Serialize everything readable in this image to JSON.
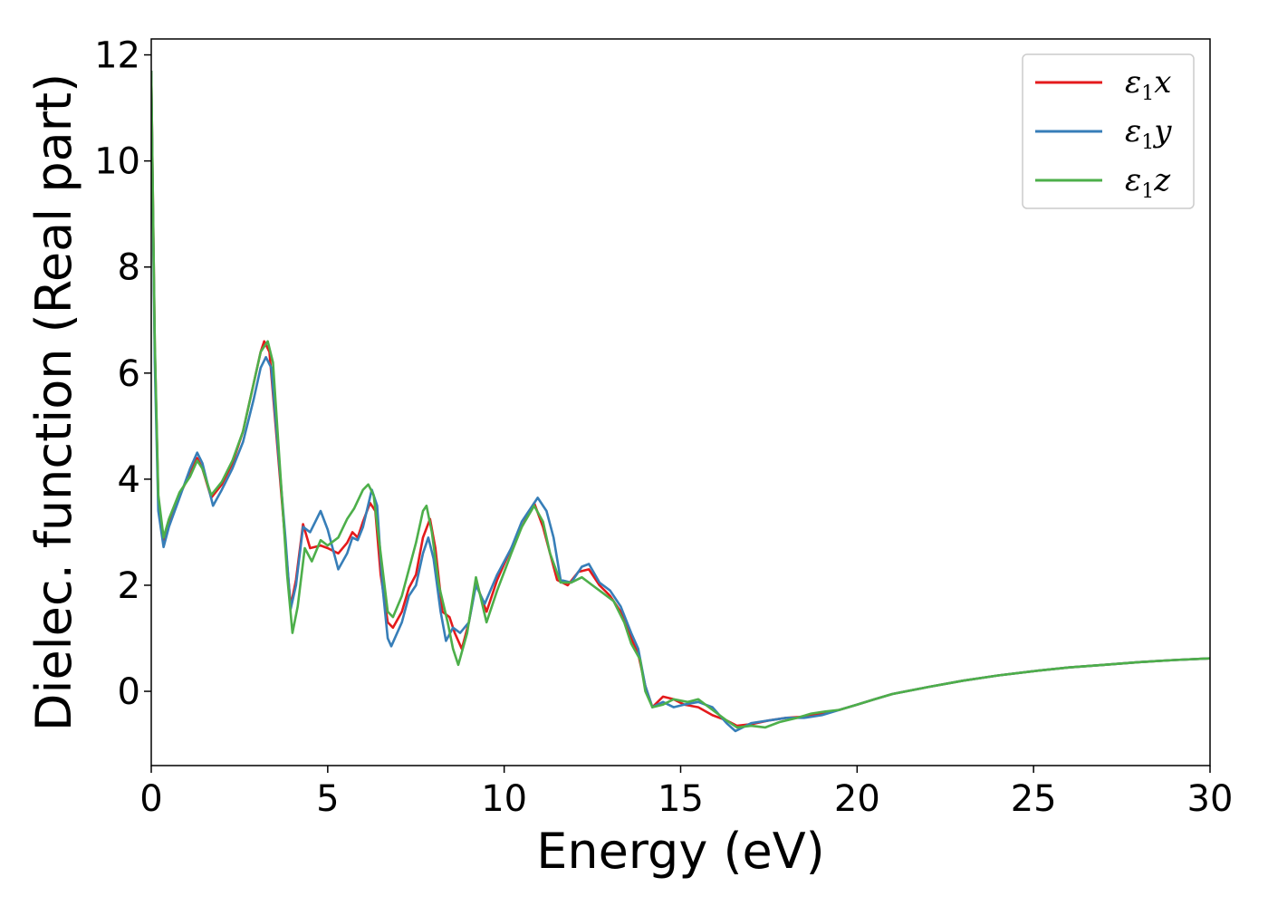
{
  "chart_data": {
    "type": "line",
    "title": "",
    "xlabel": "Energy (eV)",
    "ylabel": "Dielec. function (Real part)",
    "xlim": [
      0,
      30
    ],
    "ylim": [
      -1.4,
      12.3
    ],
    "xticks": [
      0,
      5,
      10,
      15,
      20,
      25,
      30
    ],
    "yticks": [
      0,
      2,
      4,
      6,
      8,
      10,
      12
    ],
    "grid": false,
    "legend": "top-right",
    "series": [
      {
        "name": "ε1x",
        "label_main": "ε",
        "label_sub": "1",
        "label_tail": "x",
        "color": "#e41a1c",
        "points": [
          [
            0,
            11.7
          ],
          [
            0.1,
            6.5
          ],
          [
            0.2,
            3.6
          ],
          [
            0.35,
            2.85
          ],
          [
            0.5,
            3.2
          ],
          [
            0.8,
            3.7
          ],
          [
            1.1,
            4.1
          ],
          [
            1.3,
            4.4
          ],
          [
            1.45,
            4.2
          ],
          [
            1.7,
            3.65
          ],
          [
            2.0,
            3.9
          ],
          [
            2.3,
            4.3
          ],
          [
            2.6,
            4.9
          ],
          [
            2.9,
            5.8
          ],
          [
            3.1,
            6.4
          ],
          [
            3.2,
            6.6
          ],
          [
            3.35,
            6.4
          ],
          [
            3.6,
            4.4
          ],
          [
            3.8,
            2.8
          ],
          [
            3.95,
            1.6
          ],
          [
            4.1,
            2.1
          ],
          [
            4.3,
            3.15
          ],
          [
            4.5,
            2.7
          ],
          [
            4.8,
            2.75
          ],
          [
            5.0,
            2.7
          ],
          [
            5.3,
            2.6
          ],
          [
            5.55,
            2.8
          ],
          [
            5.7,
            3.0
          ],
          [
            5.85,
            2.9
          ],
          [
            6.0,
            3.2
          ],
          [
            6.2,
            3.55
          ],
          [
            6.35,
            3.4
          ],
          [
            6.5,
            2.2
          ],
          [
            6.7,
            1.3
          ],
          [
            6.85,
            1.2
          ],
          [
            7.1,
            1.5
          ],
          [
            7.3,
            1.95
          ],
          [
            7.5,
            2.2
          ],
          [
            7.7,
            2.9
          ],
          [
            7.9,
            3.25
          ],
          [
            8.05,
            2.7
          ],
          [
            8.25,
            1.5
          ],
          [
            8.45,
            1.4
          ],
          [
            8.6,
            1.1
          ],
          [
            8.8,
            0.8
          ],
          [
            9.0,
            1.3
          ],
          [
            9.2,
            2.05
          ],
          [
            9.5,
            1.5
          ],
          [
            9.8,
            2.1
          ],
          [
            10.2,
            2.7
          ],
          [
            10.5,
            3.1
          ],
          [
            10.85,
            3.55
          ],
          [
            11.1,
            3.1
          ],
          [
            11.3,
            2.6
          ],
          [
            11.5,
            2.1
          ],
          [
            11.8,
            2.0
          ],
          [
            12.1,
            2.25
          ],
          [
            12.4,
            2.3
          ],
          [
            12.7,
            2.0
          ],
          [
            13.0,
            1.8
          ],
          [
            13.3,
            1.5
          ],
          [
            13.6,
            1.0
          ],
          [
            13.8,
            0.7
          ],
          [
            14.0,
            0.1
          ],
          [
            14.2,
            -0.3
          ],
          [
            14.5,
            -0.1
          ],
          [
            14.8,
            -0.15
          ],
          [
            15.1,
            -0.25
          ],
          [
            15.5,
            -0.3
          ],
          [
            15.9,
            -0.45
          ],
          [
            16.3,
            -0.55
          ],
          [
            16.6,
            -0.65
          ],
          [
            17.0,
            -0.62
          ],
          [
            17.5,
            -0.55
          ],
          [
            18.0,
            -0.5
          ],
          [
            18.5,
            -0.48
          ],
          [
            19.0,
            -0.42
          ],
          [
            19.5,
            -0.35
          ],
          [
            20.0,
            -0.25
          ],
          [
            20.5,
            -0.15
          ],
          [
            21.0,
            -0.05
          ],
          [
            22.0,
            0.08
          ],
          [
            23.0,
            0.2
          ],
          [
            24.0,
            0.3
          ],
          [
            25.0,
            0.38
          ],
          [
            26.0,
            0.45
          ],
          [
            27.0,
            0.5
          ],
          [
            28.0,
            0.55
          ],
          [
            29.0,
            0.59
          ],
          [
            30.0,
            0.62
          ]
        ]
      },
      {
        "name": "ε1y",
        "label_main": "ε",
        "label_sub": "1",
        "label_tail": "y",
        "color": "#377eb8",
        "points": [
          [
            0,
            11.7
          ],
          [
            0.1,
            6.2
          ],
          [
            0.2,
            3.4
          ],
          [
            0.35,
            2.72
          ],
          [
            0.5,
            3.1
          ],
          [
            0.8,
            3.65
          ],
          [
            1.1,
            4.2
          ],
          [
            1.3,
            4.5
          ],
          [
            1.45,
            4.3
          ],
          [
            1.75,
            3.5
          ],
          [
            2.0,
            3.8
          ],
          [
            2.3,
            4.2
          ],
          [
            2.6,
            4.7
          ],
          [
            2.9,
            5.5
          ],
          [
            3.1,
            6.1
          ],
          [
            3.25,
            6.3
          ],
          [
            3.4,
            6.1
          ],
          [
            3.6,
            4.5
          ],
          [
            3.8,
            2.9
          ],
          [
            3.95,
            1.55
          ],
          [
            4.1,
            2.0
          ],
          [
            4.3,
            3.1
          ],
          [
            4.5,
            3.0
          ],
          [
            4.8,
            3.4
          ],
          [
            5.0,
            3.05
          ],
          [
            5.3,
            2.3
          ],
          [
            5.55,
            2.6
          ],
          [
            5.7,
            2.9
          ],
          [
            5.85,
            2.85
          ],
          [
            6.0,
            3.1
          ],
          [
            6.25,
            3.8
          ],
          [
            6.4,
            3.5
          ],
          [
            6.55,
            2.0
          ],
          [
            6.7,
            1.0
          ],
          [
            6.8,
            0.85
          ],
          [
            7.1,
            1.3
          ],
          [
            7.3,
            1.8
          ],
          [
            7.5,
            2.0
          ],
          [
            7.7,
            2.6
          ],
          [
            7.85,
            2.9
          ],
          [
            8.0,
            2.5
          ],
          [
            8.2,
            1.5
          ],
          [
            8.35,
            0.95
          ],
          [
            8.55,
            1.2
          ],
          [
            8.75,
            1.1
          ],
          [
            9.0,
            1.3
          ],
          [
            9.2,
            2.0
          ],
          [
            9.45,
            1.65
          ],
          [
            9.8,
            2.2
          ],
          [
            10.2,
            2.7
          ],
          [
            10.5,
            3.2
          ],
          [
            10.95,
            3.65
          ],
          [
            11.2,
            3.4
          ],
          [
            11.4,
            2.9
          ],
          [
            11.6,
            2.1
          ],
          [
            11.9,
            2.05
          ],
          [
            12.2,
            2.35
          ],
          [
            12.4,
            2.4
          ],
          [
            12.7,
            2.05
          ],
          [
            13.0,
            1.9
          ],
          [
            13.3,
            1.6
          ],
          [
            13.6,
            1.1
          ],
          [
            13.8,
            0.8
          ],
          [
            14.0,
            0.1
          ],
          [
            14.2,
            -0.3
          ],
          [
            14.5,
            -0.2
          ],
          [
            14.8,
            -0.3
          ],
          [
            15.1,
            -0.25
          ],
          [
            15.5,
            -0.2
          ],
          [
            15.9,
            -0.3
          ],
          [
            16.3,
            -0.6
          ],
          [
            16.55,
            -0.75
          ],
          [
            17.0,
            -0.6
          ],
          [
            17.5,
            -0.55
          ],
          [
            18.0,
            -0.5
          ],
          [
            18.5,
            -0.5
          ],
          [
            19.0,
            -0.45
          ],
          [
            19.5,
            -0.35
          ],
          [
            20.0,
            -0.25
          ],
          [
            20.5,
            -0.15
          ],
          [
            21.0,
            -0.05
          ],
          [
            22.0,
            0.08
          ],
          [
            23.0,
            0.2
          ],
          [
            24.0,
            0.3
          ],
          [
            25.0,
            0.38
          ],
          [
            26.0,
            0.45
          ],
          [
            27.0,
            0.5
          ],
          [
            28.0,
            0.55
          ],
          [
            29.0,
            0.59
          ],
          [
            30.0,
            0.62
          ]
        ]
      },
      {
        "name": "ε1z",
        "label_main": "ε",
        "label_sub": "1",
        "label_tail": "z",
        "color": "#4daf4a",
        "points": [
          [
            0,
            11.7
          ],
          [
            0.1,
            6.6
          ],
          [
            0.2,
            3.7
          ],
          [
            0.35,
            2.9
          ],
          [
            0.5,
            3.25
          ],
          [
            0.8,
            3.75
          ],
          [
            1.1,
            4.05
          ],
          [
            1.3,
            4.35
          ],
          [
            1.45,
            4.2
          ],
          [
            1.7,
            3.7
          ],
          [
            2.0,
            3.95
          ],
          [
            2.3,
            4.35
          ],
          [
            2.6,
            4.9
          ],
          [
            2.9,
            5.8
          ],
          [
            3.1,
            6.4
          ],
          [
            3.3,
            6.6
          ],
          [
            3.45,
            6.2
          ],
          [
            3.65,
            4.2
          ],
          [
            3.85,
            2.2
          ],
          [
            4.0,
            1.1
          ],
          [
            4.15,
            1.6
          ],
          [
            4.35,
            2.7
          ],
          [
            4.55,
            2.45
          ],
          [
            4.8,
            2.85
          ],
          [
            5.0,
            2.75
          ],
          [
            5.3,
            2.9
          ],
          [
            5.55,
            3.25
          ],
          [
            5.75,
            3.45
          ],
          [
            6.0,
            3.8
          ],
          [
            6.15,
            3.9
          ],
          [
            6.3,
            3.7
          ],
          [
            6.5,
            2.6
          ],
          [
            6.7,
            1.5
          ],
          [
            6.85,
            1.4
          ],
          [
            7.1,
            1.8
          ],
          [
            7.3,
            2.3
          ],
          [
            7.5,
            2.8
          ],
          [
            7.7,
            3.4
          ],
          [
            7.8,
            3.5
          ],
          [
            7.95,
            3.0
          ],
          [
            8.15,
            2.0
          ],
          [
            8.4,
            1.3
          ],
          [
            8.55,
            0.8
          ],
          [
            8.7,
            0.5
          ],
          [
            8.95,
            1.1
          ],
          [
            9.2,
            2.15
          ],
          [
            9.5,
            1.3
          ],
          [
            9.8,
            1.9
          ],
          [
            10.2,
            2.6
          ],
          [
            10.5,
            3.1
          ],
          [
            10.85,
            3.5
          ],
          [
            11.1,
            3.2
          ],
          [
            11.3,
            2.6
          ],
          [
            11.6,
            2.05
          ],
          [
            11.9,
            2.05
          ],
          [
            12.2,
            2.15
          ],
          [
            12.5,
            2.0
          ],
          [
            12.8,
            1.85
          ],
          [
            13.1,
            1.7
          ],
          [
            13.4,
            1.3
          ],
          [
            13.6,
            0.9
          ],
          [
            13.85,
            0.6
          ],
          [
            14.0,
            0.0
          ],
          [
            14.2,
            -0.3
          ],
          [
            14.5,
            -0.25
          ],
          [
            14.8,
            -0.15
          ],
          [
            15.2,
            -0.2
          ],
          [
            15.5,
            -0.15
          ],
          [
            15.9,
            -0.35
          ],
          [
            16.3,
            -0.55
          ],
          [
            16.6,
            -0.68
          ],
          [
            17.0,
            -0.65
          ],
          [
            17.4,
            -0.68
          ],
          [
            17.8,
            -0.58
          ],
          [
            18.3,
            -0.5
          ],
          [
            18.7,
            -0.42
          ],
          [
            19.1,
            -0.38
          ],
          [
            19.5,
            -0.35
          ],
          [
            20.0,
            -0.25
          ],
          [
            20.5,
            -0.15
          ],
          [
            21.0,
            -0.05
          ],
          [
            22.0,
            0.08
          ],
          [
            23.0,
            0.2
          ],
          [
            24.0,
            0.3
          ],
          [
            25.0,
            0.38
          ],
          [
            26.0,
            0.45
          ],
          [
            27.0,
            0.5
          ],
          [
            28.0,
            0.55
          ],
          [
            29.0,
            0.59
          ],
          [
            30.0,
            0.62
          ]
        ]
      }
    ]
  }
}
